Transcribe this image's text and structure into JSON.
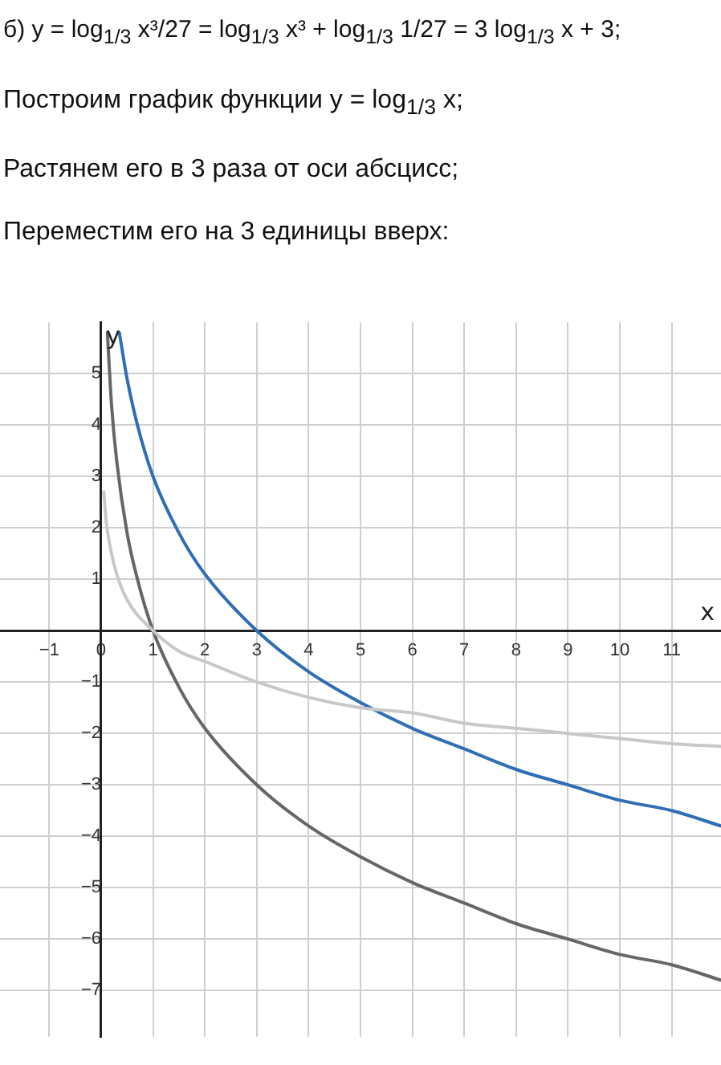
{
  "chart_data": {
    "type": "line",
    "annotations": [
      "б) y = log$_{1/3}$ x³/27 = log$_{1/3}$ x³ + log$_{1/3}$ 1/27 = 3 log$_{1/3}$ x + 3;",
      "Построим график функции y = log$_{1/3}$ x;",
      "Растянем его в 3 раза от оси абсцисс;",
      "Переместим его на 3 единицы вверх:"
    ],
    "xlabel": "x",
    "ylabel": "y",
    "xlim": [
      -1.95,
      11.95
    ],
    "ylim": [
      -7.9,
      6
    ],
    "xticks": [
      -1,
      0,
      1,
      2,
      3,
      4,
      5,
      6,
      7,
      8,
      9,
      10,
      11
    ],
    "yticks": [
      -7,
      -6,
      -5,
      -4,
      -3,
      -2,
      -1,
      {
        "value": 0,
        "label": null
      },
      1,
      2,
      3,
      4,
      5
    ],
    "grid": true,
    "marker": "none",
    "line_style": "solid",
    "series": [
      {
        "color": "#c8c8c8",
        "x": [
          0.05,
          0.1,
          0.2,
          0.3,
          0.5,
          1,
          1.5,
          2,
          3,
          4,
          5,
          6,
          7,
          8,
          9,
          10,
          11,
          11.95
        ],
        "values": [
          2.7,
          2.1,
          1.5,
          1.1,
          0.6,
          0,
          -0.4,
          -0.6,
          -1,
          -1.3,
          -1.5,
          -1.6,
          -1.8,
          -1.9,
          -2,
          -2.1,
          -2.2,
          -2.25
        ]
      },
      {
        "color": "#666666",
        "x": [
          0.12,
          0.2,
          0.3,
          0.5,
          0.7,
          1,
          1.5,
          2,
          3,
          4,
          5,
          6,
          7,
          8,
          9,
          10,
          11,
          11.95
        ],
        "values": [
          5.8,
          4.4,
          3.3,
          1.9,
          1,
          0,
          -1.1,
          -1.9,
          -3,
          -3.8,
          -4.4,
          -4.9,
          -5.3,
          -5.7,
          -6,
          -6.3,
          -6.5,
          -6.8
        ]
      },
      {
        "color": "#2f6eb5",
        "x": [
          0.35,
          0.5,
          0.7,
          1,
          1.5,
          2,
          3,
          4,
          5,
          6,
          7,
          8,
          9,
          10,
          11,
          11.95
        ],
        "values": [
          5.8,
          4.9,
          4,
          3,
          1.9,
          1.1,
          0,
          -0.8,
          -1.4,
          -1.9,
          -2.3,
          -2.7,
          -3,
          -3.3,
          -3.5,
          -3.8
        ]
      }
    ]
  }
}
